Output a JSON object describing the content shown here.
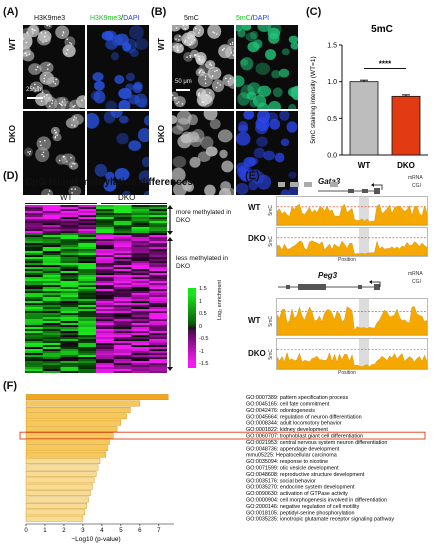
{
  "panels": {
    "A": {
      "label": "(A)",
      "title_left": "H3K9me3",
      "title_right_green": "H3K9me3",
      "title_right_sep": "/",
      "title_right_blue": "DAPI",
      "row_wt": "WT",
      "row_dko": "DKO",
      "scale": "25 μm"
    },
    "B": {
      "label": "(B)",
      "title_left": "5mC",
      "title_right_green": "5mC",
      "title_right_sep": "/",
      "title_right_blue": "DAPI",
      "row_wt": "WT",
      "row_dko": "DKO",
      "scale": "50 μm"
    },
    "C": {
      "label": "(C)"
    },
    "D": {
      "label": "(D)",
      "title": "CpG island methylation differences",
      "col_wt": "WT",
      "col_dko": "DKO",
      "annot_more": "more methylated in DKO",
      "annot_less": "less methylated in DKO",
      "legend_title": "Log₂ enrichment",
      "legend_ticks": [
        "1.5",
        "1",
        "0.5",
        "0",
        "-0.5",
        "-1",
        "-1.5"
      ]
    },
    "E": {
      "label": "(E)",
      "gene1": "Gata3",
      "gene2": "Peg3",
      "track_mrna": "mRNA",
      "track_cgi": "CGI",
      "row_wt": "WT",
      "row_dko": "DKO",
      "ylab": "5mC",
      "xlab": "Position"
    },
    "F": {
      "label": "(F)"
    }
  },
  "colors": {
    "green": "#19e619",
    "blue": "#1a3cff",
    "orange": "#f5a800",
    "red": "#e23a12",
    "gray": "#b8b8b8"
  },
  "chart_data": [
    {
      "type": "bar",
      "title": "5mC",
      "categories": [
        "WT",
        "DKO"
      ],
      "values": [
        1.0,
        0.8
      ],
      "errors": [
        0.02,
        0.02
      ],
      "ylabel": "5mC staining intensity (WT=1)",
      "ylim": [
        0,
        1.5
      ],
      "yticks": [
        "0.0",
        "0.5",
        "1.0",
        "1.5"
      ],
      "significance": "****",
      "bar_colors": [
        "#bdbdbd",
        "#e23a12"
      ]
    },
    {
      "type": "bar",
      "orientation": "horizontal",
      "xlabel": "−Log10 (p-value)",
      "xticks": [
        "0",
        "1",
        "2",
        "3",
        "4",
        "5",
        "6",
        "7"
      ],
      "xlim": [
        0,
        7.8
      ],
      "highlighted": "GO:0060707: trophoblast giant cell differentiation",
      "categories": [
        "GO:0007389: pattern specification process",
        "GO:0045165: cell fate commitment",
        "GO:0042476: odontogenesis",
        "GO:0045664: regulation of neuron differentiation",
        "GO:0008344: adult locomotory behavior",
        "GO:0001822: kidney development",
        "GO:0060707: trophoblast giant cell differentiation",
        "GO:0021953: central nervous system neuron differentiation",
        "GO:0048736: appendage development",
        "mmu05225: Hepatocellular carcinoma",
        "GO:0035094: response to nicotine",
        "GO:0071599: otic vesicle development",
        "GO:0048608: reproductive structure development",
        "GO:0035176: social behavior",
        "GO:0035270: endocrine system development",
        "GO:0090630: activation of GTPase activity",
        "GO:0000904: cell morphogenesis involved in differentiation",
        "GO:2000146: negative regulation of cell motility",
        "GO:0018105: peptidyl-serine phosphorylation",
        "GO:0035235: ionotropic glutamate receptor signaling pathway"
      ],
      "values": [
        7.5,
        6.0,
        5.5,
        5.3,
        5.0,
        4.8,
        4.6,
        4.4,
        4.3,
        4.2,
        3.9,
        3.8,
        3.7,
        3.6,
        3.5,
        3.4,
        3.3,
        3.2,
        3.1,
        3.0
      ]
    }
  ]
}
